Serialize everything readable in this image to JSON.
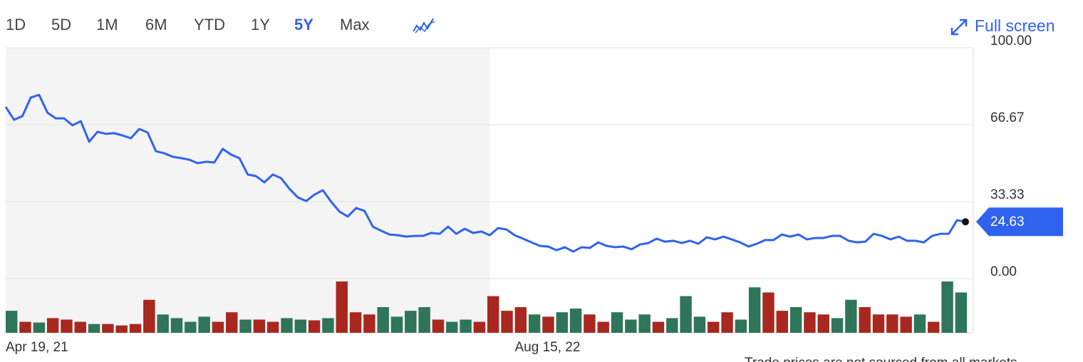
{
  "toolbar": {
    "ranges": [
      "1D",
      "5D",
      "1M",
      "6M",
      "YTD",
      "1Y",
      "5Y",
      "Max"
    ],
    "selected": "5Y",
    "full_screen": "Full screen"
  },
  "chart_data": {
    "type": "line",
    "categories": [
      "Apr 19, 21",
      null,
      null,
      null,
      null,
      null,
      null,
      null,
      null,
      null,
      null,
      null,
      null,
      null,
      null,
      null,
      null,
      null,
      null,
      null,
      null,
      null,
      null,
      null,
      null,
      null,
      null,
      null,
      null,
      null,
      null,
      null,
      null,
      null,
      null,
      null,
      null,
      null,
      null,
      null,
      null,
      null,
      null,
      null,
      null,
      null,
      null,
      null,
      null,
      null,
      null,
      null,
      null,
      null,
      null,
      null,
      null,
      null,
      null,
      null,
      null,
      "Aug 15, 22",
      null,
      null,
      null,
      null,
      null,
      null,
      null,
      null,
      null,
      null,
      null,
      null,
      null,
      null,
      null,
      null,
      null,
      null,
      null,
      null,
      null,
      null,
      null,
      null,
      null,
      null,
      null,
      null,
      null,
      null,
      null,
      null,
      null,
      null,
      null,
      null,
      null,
      null,
      null,
      null,
      null,
      null,
      null,
      null,
      null,
      null,
      null,
      null,
      null,
      null,
      null,
      null,
      null,
      null
    ],
    "series": [
      {
        "color": "#2f63ef",
        "values": [
          74.4,
          68.8,
          70.4,
          78.4,
          79.6,
          71.9,
          69.4,
          69.4,
          66.4,
          68.2,
          59.3,
          63.6,
          62.7,
          63.0,
          62.0,
          60.8,
          64.8,
          63.3,
          55.2,
          54.3,
          52.8,
          52.2,
          51.5,
          50.0,
          50.6,
          50.3,
          56.2,
          53.7,
          52.2,
          45.1,
          44.4,
          41.7,
          45.1,
          43.5,
          38.9,
          35.2,
          33.6,
          36.4,
          38.3,
          33.3,
          29.0,
          26.9,
          30.6,
          29.3,
          22.5,
          20.7,
          19.1,
          18.8,
          18.2,
          18.5,
          18.5,
          19.8,
          19.4,
          22.5,
          19.4,
          21.6,
          19.8,
          20.4,
          18.8,
          21.9,
          21.3,
          18.8,
          17.3,
          15.7,
          14.2,
          13.9,
          12.3,
          13.6,
          11.7,
          13.6,
          13.3,
          15.7,
          14.2,
          13.6,
          13.9,
          12.7,
          14.8,
          15.4,
          17.3,
          16.0,
          16.4,
          15.4,
          16.4,
          15.1,
          17.9,
          17.0,
          18.2,
          17.0,
          15.7,
          13.9,
          15.1,
          16.7,
          16.7,
          19.1,
          18.2,
          19.1,
          17.0,
          17.6,
          17.6,
          18.5,
          18.5,
          16.4,
          15.7,
          16.0,
          19.4,
          18.5,
          17.0,
          18.2,
          16.4,
          16.4,
          15.7,
          18.5,
          19.4,
          19.4,
          25.3,
          24.63
        ]
      }
    ],
    "ylim": [
      0,
      100
    ],
    "yticks": [
      {
        "value": 0,
        "label": "0.00"
      },
      33.33,
      66.67,
      {
        "value": 100,
        "label": "100.00"
      }
    ],
    "grid": true,
    "volume": {
      "up_color": "#2e7559",
      "down_color": "#a8281f",
      "values": [
        30,
        15,
        14,
        20,
        18,
        15,
        12,
        12,
        10,
        12,
        45,
        25,
        20,
        15,
        22,
        15,
        28,
        18,
        18,
        15,
        20,
        18,
        17,
        20,
        70,
        28,
        25,
        35,
        22,
        30,
        35,
        18,
        15,
        18,
        15,
        50,
        30,
        35,
        25,
        22,
        28,
        33,
        25,
        15,
        28,
        18,
        25,
        15,
        20,
        50,
        22,
        15,
        28,
        18,
        62,
        55,
        30,
        35,
        28,
        25,
        20,
        45,
        35,
        25,
        25,
        22,
        25,
        15,
        70,
        55
      ],
      "up": [
        true,
        false,
        true,
        false,
        false,
        false,
        true,
        false,
        false,
        false,
        false,
        true,
        true,
        true,
        true,
        false,
        false,
        true,
        false,
        false,
        true,
        true,
        false,
        true,
        false,
        false,
        false,
        true,
        true,
        true,
        true,
        false,
        true,
        true,
        false,
        false,
        false,
        false,
        true,
        false,
        true,
        true,
        false,
        false,
        true,
        true,
        true,
        false,
        true,
        true,
        true,
        false,
        false,
        true,
        true,
        false,
        false,
        true,
        false,
        false,
        true,
        true,
        false,
        false,
        false,
        false,
        true,
        false,
        true,
        true
      ]
    }
  },
  "disclaimer": "Trade prices are not sourced from all markets"
}
